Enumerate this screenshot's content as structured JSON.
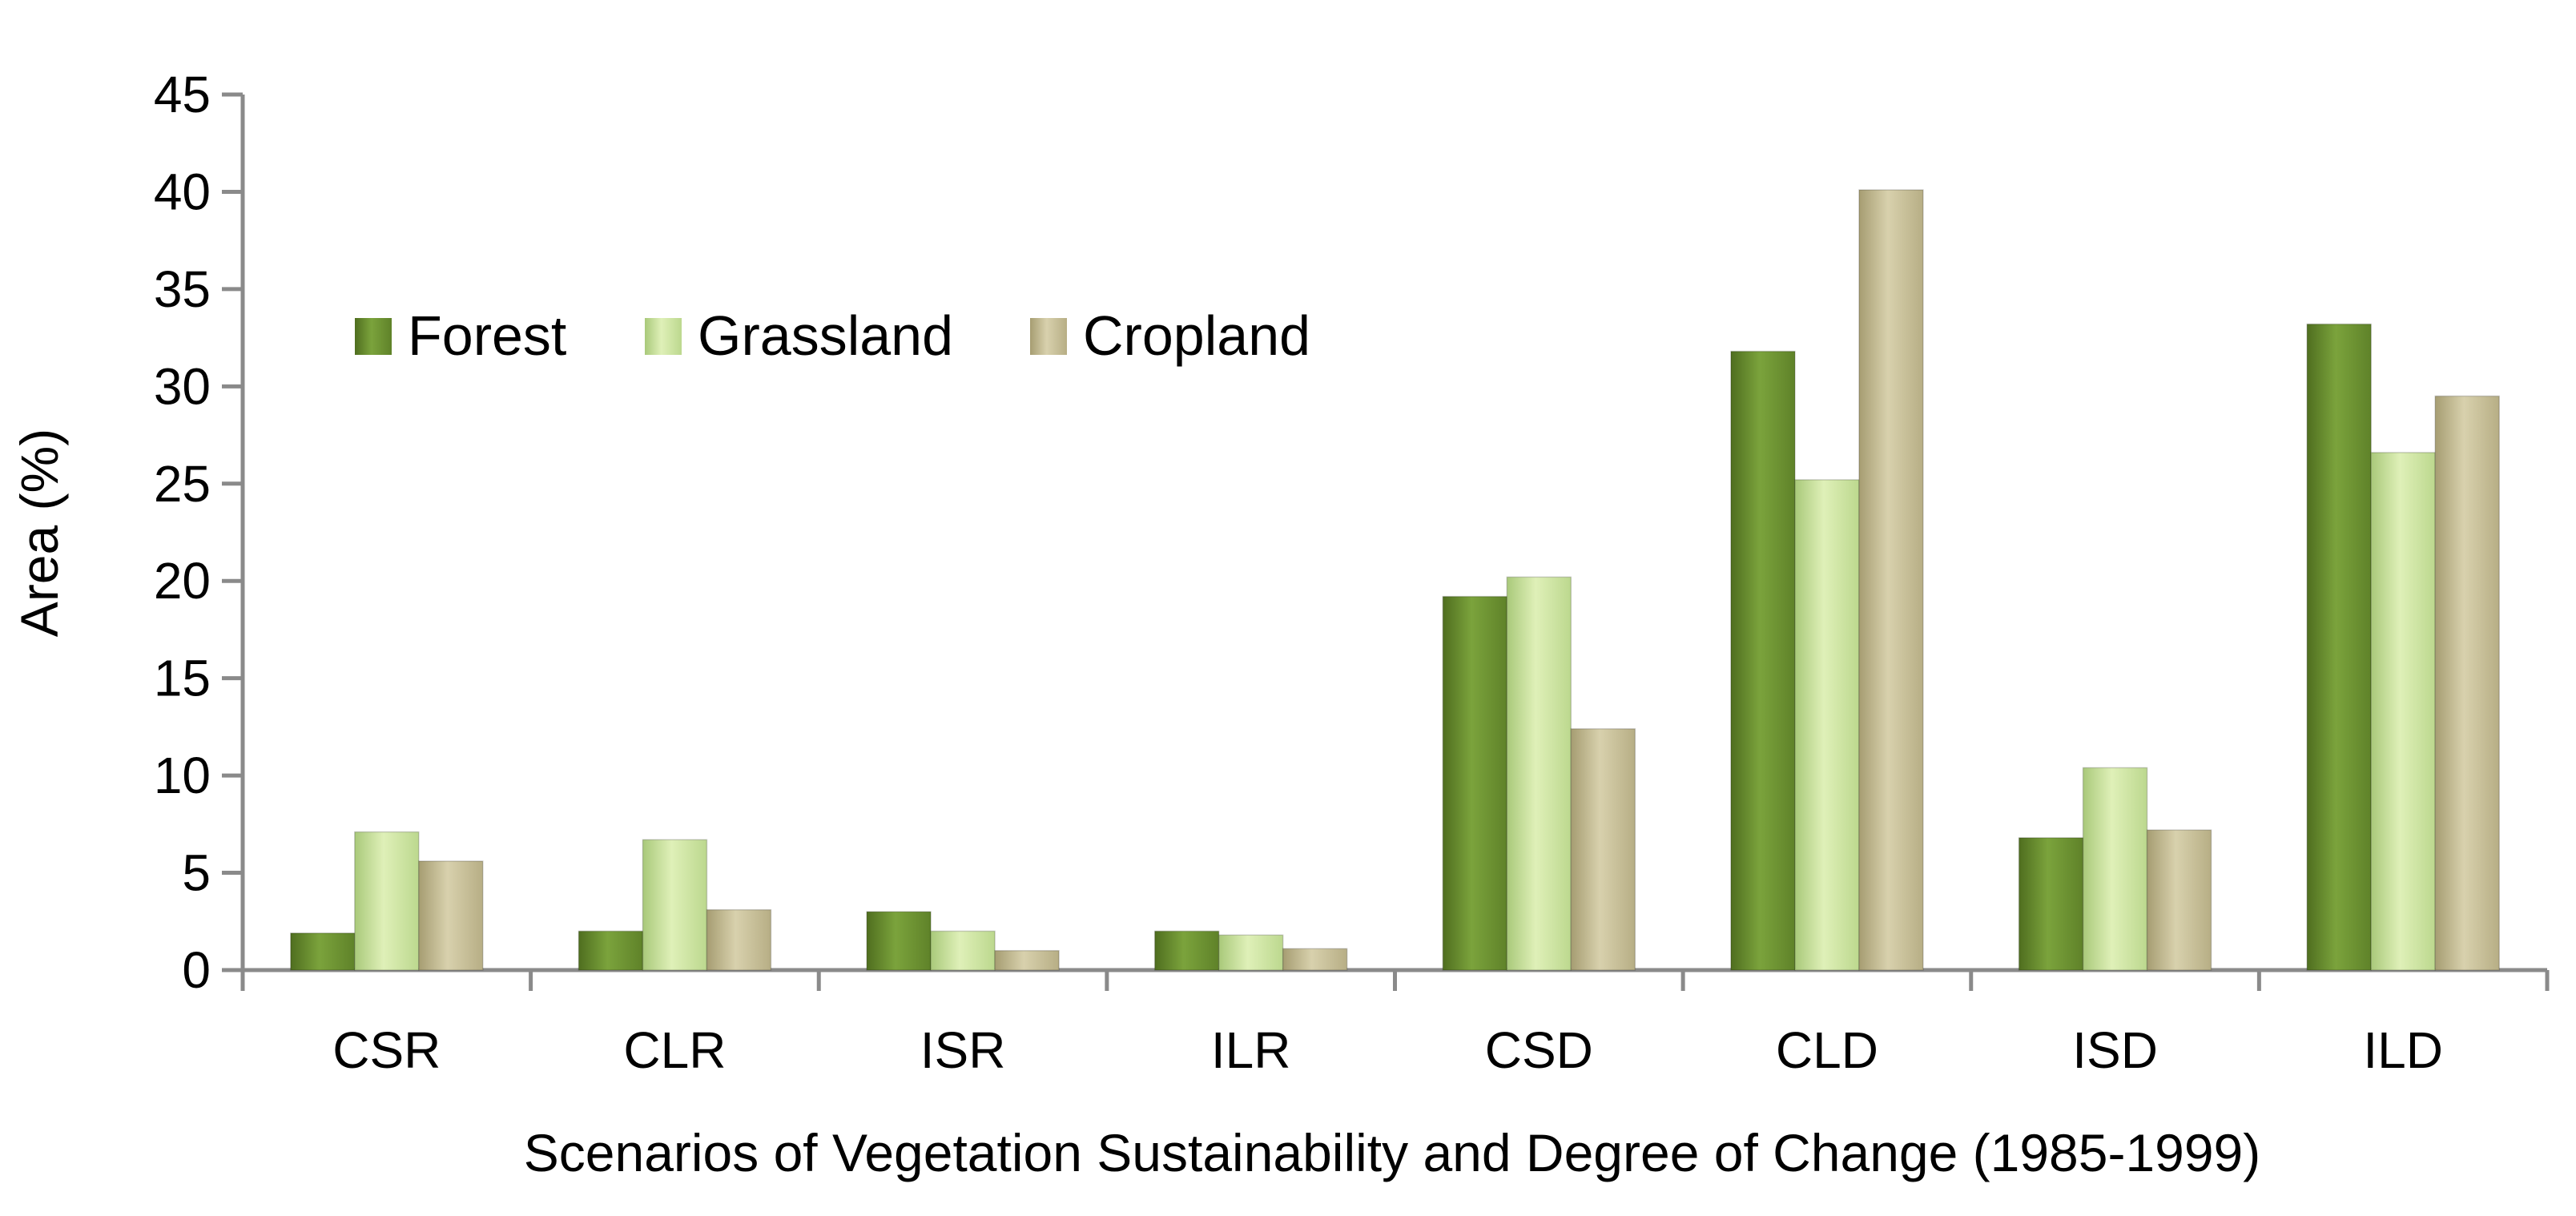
{
  "chart_data": {
    "type": "bar",
    "title": "",
    "xlabel": "Scenarios of Vegetation Sustainability and Degree of Change (1985-1999)",
    "ylabel": "Area (%)",
    "ylim": [
      0,
      45
    ],
    "yticks": [
      0,
      5,
      10,
      15,
      20,
      25,
      30,
      35,
      40,
      45
    ],
    "grid": false,
    "legend_position": "top-left",
    "categories": [
      "CSR",
      "CLR",
      "ISR",
      "ILR",
      "CSD",
      "CLD",
      "ISD",
      "ILD"
    ],
    "series": [
      {
        "name": "Forest",
        "color": "#6e9433",
        "values": [
          1.9,
          2.0,
          3.0,
          2.0,
          19.2,
          31.8,
          6.8,
          33.2
        ]
      },
      {
        "name": "Grassland",
        "color": "#cde3a0",
        "values": [
          7.1,
          6.7,
          2.0,
          1.8,
          20.2,
          25.2,
          10.4,
          26.6
        ]
      },
      {
        "name": "Cropland",
        "color": "#c9c19a",
        "values": [
          5.6,
          3.1,
          1.0,
          1.1,
          12.4,
          40.1,
          7.2,
          29.5
        ]
      }
    ]
  }
}
